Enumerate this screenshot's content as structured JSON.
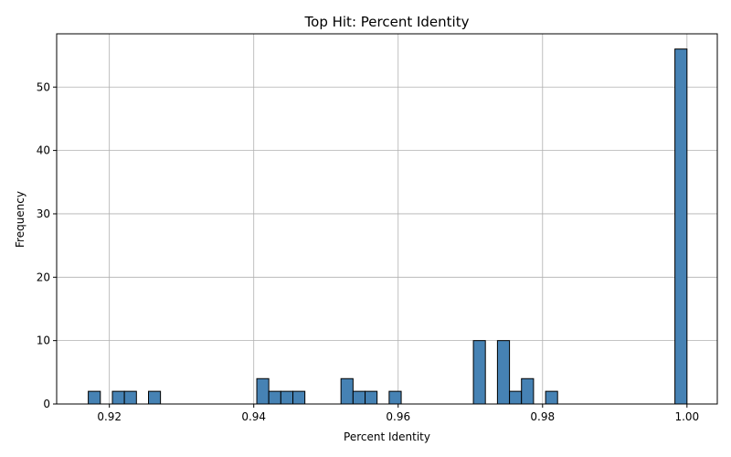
{
  "chart_data": {
    "type": "bar",
    "title": "Top Hit: Percent Identity",
    "xlabel": "Percent Identity",
    "ylabel": "Frequency",
    "xlim": [
      0.9127,
      1.0042
    ],
    "ylim": [
      0,
      58.4
    ],
    "grid": true,
    "bar_color": "#4682b4",
    "edge_color": "#000000",
    "x_ticks": [
      {
        "value": 0.92,
        "label": "0.92"
      },
      {
        "value": 0.94,
        "label": "0.94"
      },
      {
        "value": 0.96,
        "label": "0.96"
      },
      {
        "value": 0.98,
        "label": "0.98"
      },
      {
        "value": 1.0,
        "label": "1.00"
      }
    ],
    "y_ticks": [
      {
        "value": 0,
        "label": "0"
      },
      {
        "value": 10,
        "label": "10"
      },
      {
        "value": 20,
        "label": "20"
      },
      {
        "value": 30,
        "label": "30"
      },
      {
        "value": 40,
        "label": "40"
      },
      {
        "value": 50,
        "label": "50"
      }
    ],
    "bins": [
      {
        "x0": 0.91708,
        "x1": 0.91875,
        "count": 2
      },
      {
        "x0": 0.92042,
        "x1": 0.92208,
        "count": 2
      },
      {
        "x0": 0.92208,
        "x1": 0.92375,
        "count": 2
      },
      {
        "x0": 0.92542,
        "x1": 0.92708,
        "count": 2
      },
      {
        "x0": 0.94042,
        "x1": 0.94208,
        "count": 4
      },
      {
        "x0": 0.94208,
        "x1": 0.94375,
        "count": 2
      },
      {
        "x0": 0.94375,
        "x1": 0.94542,
        "count": 2
      },
      {
        "x0": 0.94542,
        "x1": 0.94708,
        "count": 2
      },
      {
        "x0": 0.95208,
        "x1": 0.95375,
        "count": 4
      },
      {
        "x0": 0.95375,
        "x1": 0.95542,
        "count": 2
      },
      {
        "x0": 0.95542,
        "x1": 0.95708,
        "count": 2
      },
      {
        "x0": 0.95875,
        "x1": 0.96042,
        "count": 2
      },
      {
        "x0": 0.97042,
        "x1": 0.97208,
        "count": 10
      },
      {
        "x0": 0.97375,
        "x1": 0.97542,
        "count": 10
      },
      {
        "x0": 0.97542,
        "x1": 0.97708,
        "count": 2
      },
      {
        "x0": 0.97708,
        "x1": 0.97875,
        "count": 4
      },
      {
        "x0": 0.98042,
        "x1": 0.98208,
        "count": 2
      },
      {
        "x0": 0.99833,
        "x1": 1.0,
        "count": 56
      }
    ]
  }
}
